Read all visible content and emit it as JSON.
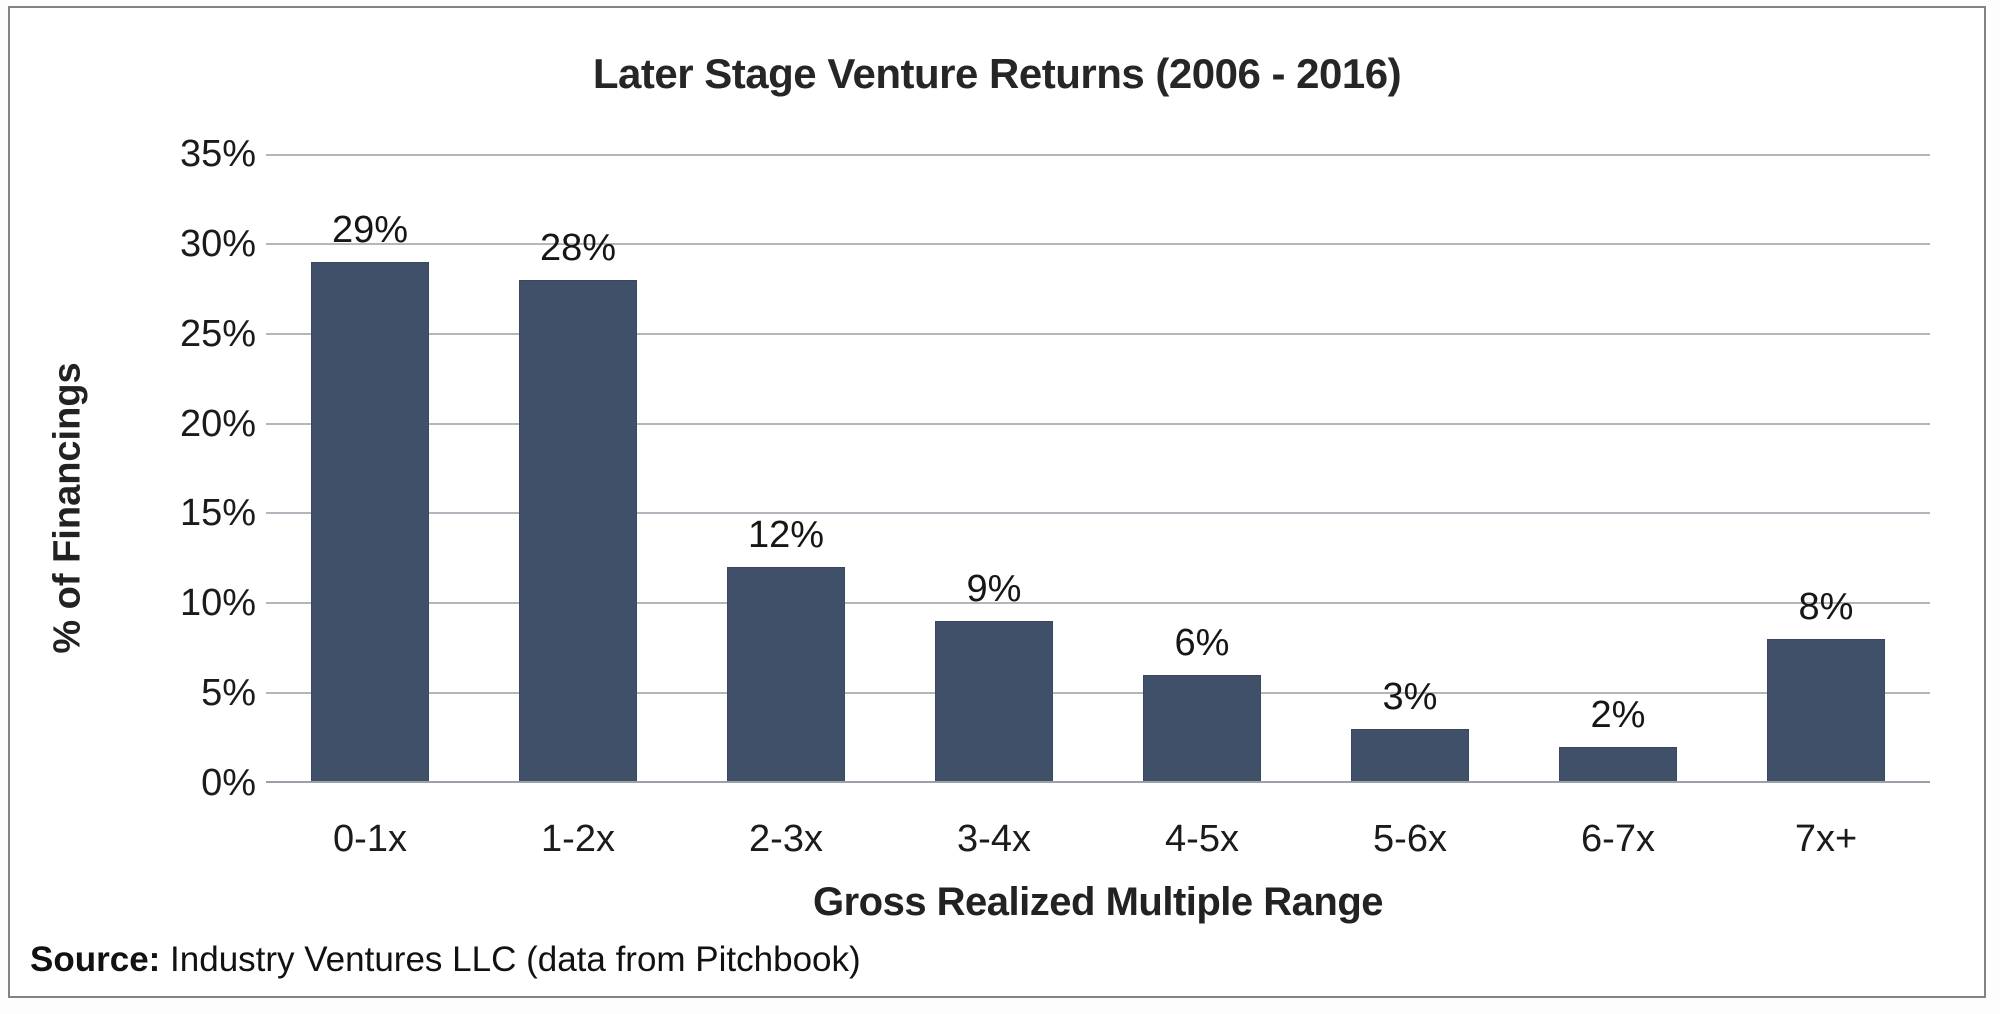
{
  "chart_data": {
    "type": "bar",
    "title": "Later Stage Venture Returns (2006 - 2016)",
    "categories": [
      "0-1x",
      "1-2x",
      "2-3x",
      "3-4x",
      "4-5x",
      "5-6x",
      "6-7x",
      "7x+"
    ],
    "values": [
      29,
      28,
      12,
      9,
      6,
      3,
      2,
      8
    ],
    "value_labels": [
      "29%",
      "28%",
      "12%",
      "9%",
      "6%",
      "3%",
      "2%",
      "8%"
    ],
    "xlabel": "Gross Realized Multiple Range",
    "ylabel": "% of Financings",
    "ylim": [
      0,
      35
    ],
    "y_tick_step": 5,
    "y_tick_labels": [
      "0%",
      "5%",
      "10%",
      "15%",
      "20%",
      "25%",
      "30%",
      "35%"
    ],
    "grid": "horizontal",
    "legend": "none",
    "bar_color": "#3f5068",
    "gridline_color": "#b2b7bd",
    "axis_line_color": "#9aa0a8",
    "frame_border_color": "#7f8487",
    "text_color": "#1b1b1b"
  },
  "source": {
    "label": "Source:",
    "text": " Industry Ventures LLC (data from Pitchbook)"
  }
}
